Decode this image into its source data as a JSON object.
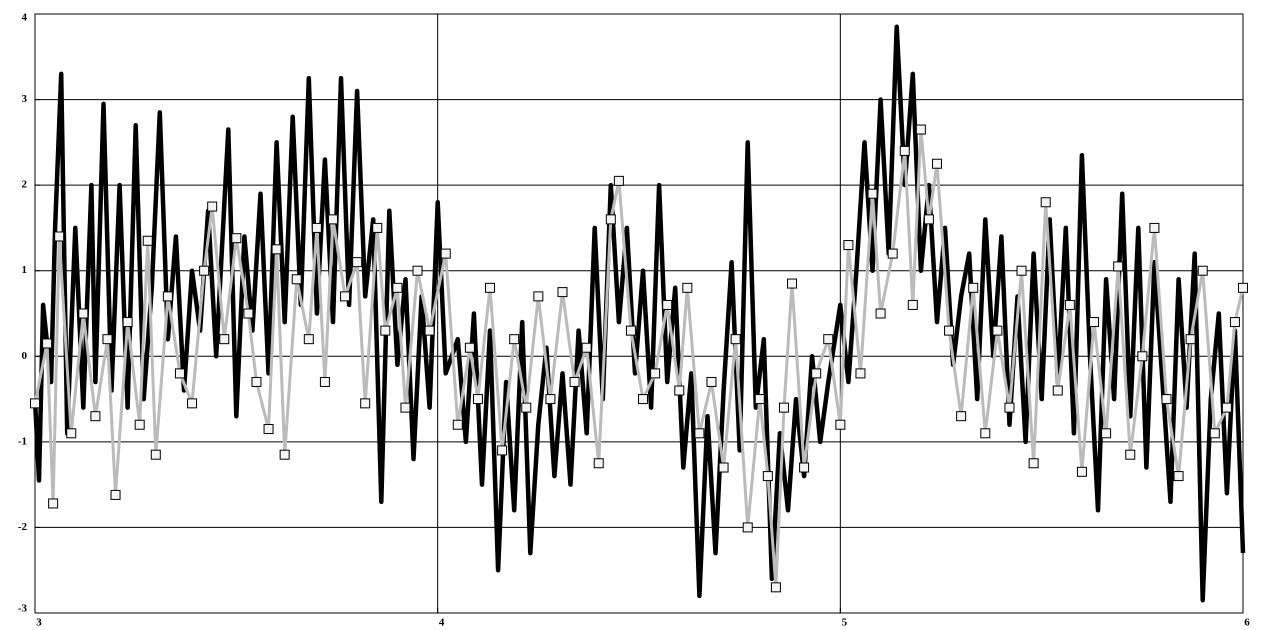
{
  "chart_data": {
    "type": "line",
    "xlim": [
      3,
      6
    ],
    "ylim": [
      -3,
      4
    ],
    "xticks": [
      3,
      4,
      5,
      6
    ],
    "yticks": [
      -3,
      -2,
      -1,
      0,
      1,
      2,
      3,
      4
    ],
    "grid": true,
    "series": [
      {
        "name": null,
        "color": "#000000",
        "marker": false,
        "x": [
          3.0,
          3.01,
          3.02,
          3.04,
          3.05,
          3.065,
          3.08,
          3.1,
          3.12,
          3.14,
          3.15,
          3.17,
          3.19,
          3.21,
          3.23,
          3.25,
          3.27,
          3.29,
          3.31,
          3.33,
          3.35,
          3.37,
          3.39,
          3.41,
          3.43,
          3.45,
          3.48,
          3.5,
          3.52,
          3.54,
          3.56,
          3.58,
          3.6,
          3.62,
          3.64,
          3.66,
          3.68,
          3.7,
          3.72,
          3.74,
          3.76,
          3.78,
          3.8,
          3.82,
          3.84,
          3.86,
          3.88,
          3.9,
          3.92,
          3.94,
          3.96,
          3.98,
          4.0,
          4.02,
          4.05,
          4.07,
          4.09,
          4.11,
          4.13,
          4.15,
          4.17,
          4.19,
          4.21,
          4.23,
          4.25,
          4.27,
          4.29,
          4.31,
          4.33,
          4.35,
          4.37,
          4.39,
          4.41,
          4.43,
          4.45,
          4.47,
          4.49,
          4.51,
          4.53,
          4.55,
          4.57,
          4.59,
          4.61,
          4.63,
          4.65,
          4.67,
          4.69,
          4.71,
          4.73,
          4.75,
          4.77,
          4.79,
          4.81,
          4.83,
          4.85,
          4.87,
          4.89,
          4.91,
          4.93,
          4.95,
          4.97,
          5.0,
          5.02,
          5.04,
          5.06,
          5.08,
          5.1,
          5.12,
          5.14,
          5.16,
          5.18,
          5.2,
          5.22,
          5.24,
          5.26,
          5.28,
          5.3,
          5.32,
          5.34,
          5.36,
          5.38,
          5.4,
          5.42,
          5.44,
          5.46,
          5.48,
          5.5,
          5.52,
          5.54,
          5.56,
          5.58,
          5.6,
          5.62,
          5.64,
          5.66,
          5.68,
          5.7,
          5.72,
          5.74,
          5.76,
          5.78,
          5.8,
          5.82,
          5.84,
          5.86,
          5.88,
          5.9,
          5.92,
          5.94,
          5.96,
          5.98,
          6.0
        ],
        "values": [
          -0.5,
          -1.45,
          0.6,
          -0.3,
          1.5,
          3.3,
          -0.9,
          1.5,
          -0.6,
          2.0,
          -0.3,
          2.95,
          -0.4,
          2.0,
          -0.6,
          2.7,
          -0.5,
          0.8,
          2.85,
          0.2,
          1.4,
          -0.4,
          1.0,
          0.3,
          1.7,
          0.0,
          2.65,
          -0.7,
          1.4,
          0.3,
          1.9,
          -0.2,
          2.5,
          0.4,
          2.8,
          0.6,
          3.25,
          0.5,
          2.3,
          0.4,
          3.25,
          0.6,
          3.1,
          0.7,
          1.6,
          -1.7,
          1.7,
          -0.1,
          0.9,
          -1.2,
          0.7,
          -0.6,
          1.8,
          -0.2,
          0.2,
          -1.0,
          0.5,
          -1.5,
          0.3,
          -2.5,
          -0.3,
          -1.8,
          0.4,
          -2.3,
          -0.8,
          0.1,
          -1.4,
          -0.2,
          -1.5,
          0.3,
          -0.9,
          1.5,
          -0.5,
          2.0,
          0.4,
          1.5,
          -0.2,
          1.0,
          -0.6,
          2.0,
          -0.3,
          0.8,
          -1.3,
          -0.2,
          -2.8,
          -0.7,
          -2.3,
          -0.4,
          1.1,
          -1.1,
          2.5,
          -0.6,
          0.2,
          -2.6,
          -0.9,
          -1.8,
          -0.5,
          -1.4,
          0.0,
          -1.0,
          -0.3,
          0.6,
          -0.3,
          1.0,
          2.5,
          1.0,
          3.0,
          1.2,
          3.85,
          2.0,
          3.3,
          1.0,
          2.0,
          0.4,
          1.5,
          -0.1,
          0.7,
          1.2,
          -0.5,
          1.6,
          0.0,
          1.4,
          -0.8,
          0.7,
          -1.0,
          1.2,
          -0.5,
          1.6,
          -0.3,
          1.5,
          -0.9,
          2.35,
          0.0,
          -1.8,
          0.9,
          -0.5,
          1.9,
          -0.7,
          1.5,
          -1.3,
          1.1,
          -0.3,
          -1.7,
          0.9,
          -0.6,
          1.2,
          -2.85,
          -0.5,
          0.5,
          -1.6,
          0.3,
          -2.3
        ]
      },
      {
        "name": null,
        "color": "#bbbbbb",
        "marker": true,
        "x": [
          3.0,
          3.03,
          3.045,
          3.06,
          3.09,
          3.12,
          3.15,
          3.18,
          3.2,
          3.23,
          3.26,
          3.28,
          3.3,
          3.33,
          3.36,
          3.39,
          3.42,
          3.44,
          3.47,
          3.5,
          3.53,
          3.55,
          3.58,
          3.6,
          3.62,
          3.65,
          3.68,
          3.7,
          3.72,
          3.74,
          3.77,
          3.8,
          3.82,
          3.85,
          3.87,
          3.9,
          3.92,
          3.95,
          3.98,
          4.02,
          4.05,
          4.08,
          4.1,
          4.13,
          4.16,
          4.19,
          4.22,
          4.25,
          4.28,
          4.31,
          4.34,
          4.37,
          4.4,
          4.43,
          4.45,
          4.48,
          4.51,
          4.54,
          4.57,
          4.6,
          4.62,
          4.65,
          4.68,
          4.71,
          4.74,
          4.77,
          4.8,
          4.82,
          4.84,
          4.86,
          4.88,
          4.91,
          4.94,
          4.97,
          5.0,
          5.02,
          5.05,
          5.08,
          5.1,
          5.13,
          5.16,
          5.18,
          5.2,
          5.22,
          5.24,
          5.27,
          5.3,
          5.33,
          5.36,
          5.39,
          5.42,
          5.45,
          5.48,
          5.51,
          5.54,
          5.57,
          5.6,
          5.63,
          5.66,
          5.69,
          5.72,
          5.75,
          5.78,
          5.81,
          5.84,
          5.87,
          5.9,
          5.93,
          5.96,
          5.98,
          6.0
        ],
        "values": [
          -0.55,
          0.15,
          -1.72,
          1.4,
          -0.9,
          0.5,
          -0.7,
          0.2,
          -1.62,
          0.4,
          -0.8,
          1.35,
          -1.15,
          0.7,
          -0.2,
          -0.55,
          1.0,
          1.75,
          0.2,
          1.38,
          0.5,
          -0.3,
          -0.85,
          1.25,
          -1.15,
          0.9,
          0.2,
          1.5,
          -0.3,
          1.6,
          0.7,
          1.1,
          -0.55,
          1.5,
          0.3,
          0.8,
          -0.6,
          1.0,
          0.3,
          1.2,
          -0.8,
          0.1,
          -0.5,
          0.8,
          -1.1,
          0.2,
          -0.6,
          0.7,
          -0.5,
          0.75,
          -0.3,
          0.1,
          -1.25,
          1.6,
          2.05,
          0.3,
          -0.5,
          -0.2,
          0.6,
          -0.4,
          0.8,
          -0.9,
          -0.3,
          -1.3,
          0.2,
          -2.0,
          -0.5,
          -1.4,
          -2.7,
          -0.6,
          0.85,
          -1.3,
          -0.2,
          0.2,
          -0.8,
          1.3,
          -0.2,
          1.9,
          0.5,
          1.2,
          2.4,
          0.6,
          2.65,
          1.6,
          2.25,
          0.3,
          -0.7,
          0.8,
          -0.9,
          0.3,
          -0.6,
          1.0,
          -1.25,
          1.8,
          -0.4,
          0.6,
          -1.35,
          0.4,
          -0.9,
          1.05,
          -1.15,
          0.0,
          1.5,
          -0.5,
          -1.4,
          0.2,
          1.0,
          -0.9,
          -0.6,
          0.4,
          0.8
        ]
      }
    ]
  }
}
